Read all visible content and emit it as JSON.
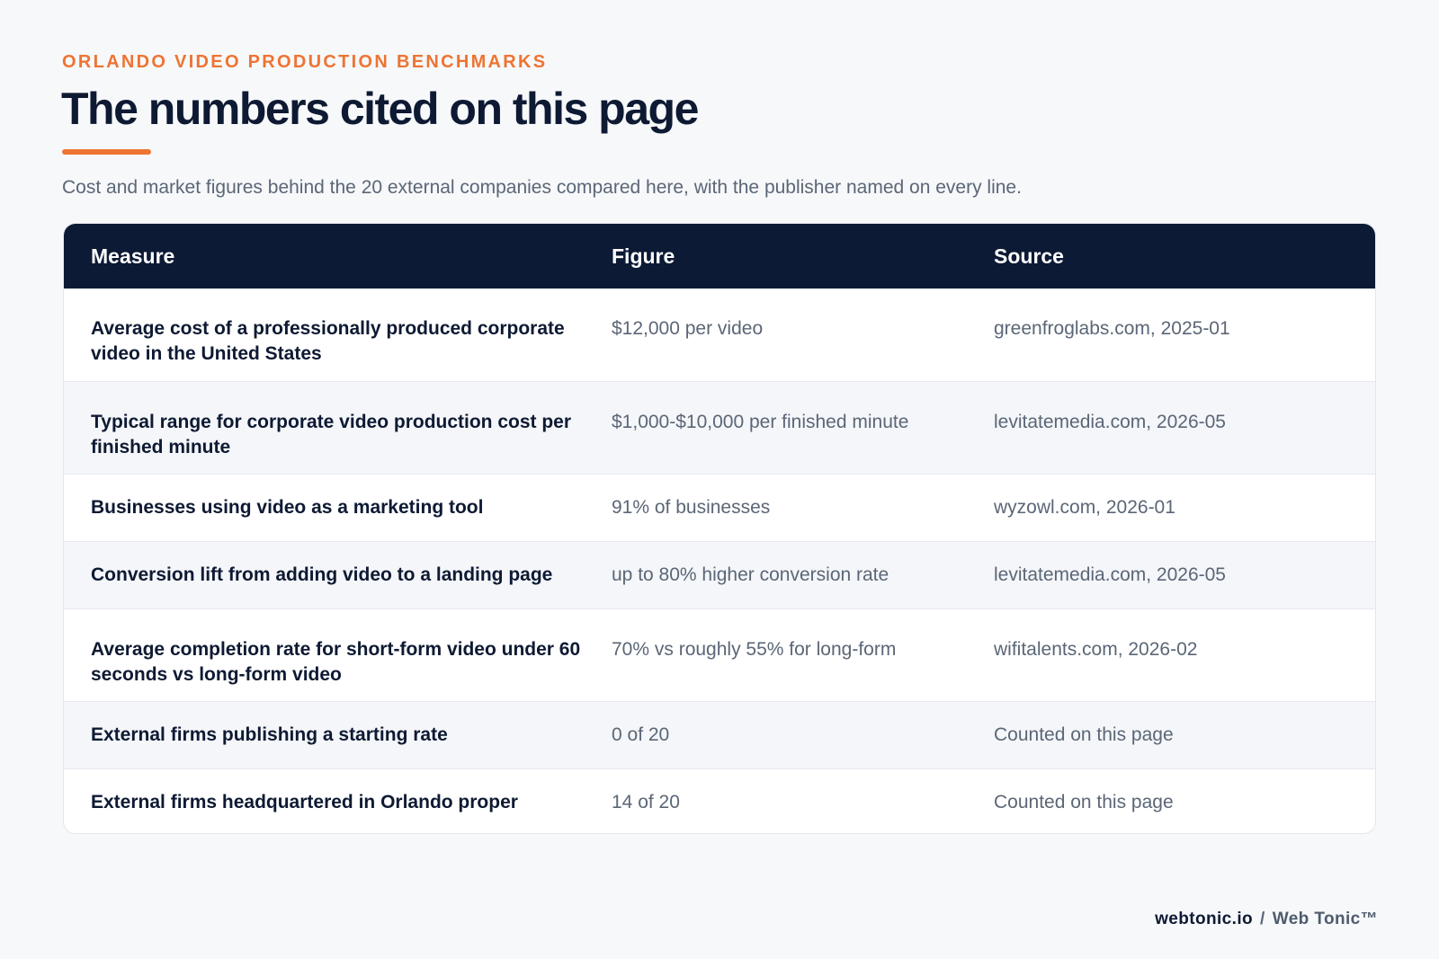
{
  "header": {
    "eyebrow": "ORLANDO VIDEO PRODUCTION BENCHMARKS",
    "title": "The numbers cited on this page",
    "subtitle": "Cost and market figures behind the 20 external companies compared here, with the publisher named on every line."
  },
  "table": {
    "columns": [
      "Measure",
      "Figure",
      "Source"
    ],
    "rows": [
      {
        "measure": "Average cost of a professionally produced corporate video in the United States",
        "figure": "$12,000 per video",
        "source": "greenfroglabs.com, 2025-01"
      },
      {
        "measure": "Typical range for corporate video production cost per finished minute",
        "figure": "$1,000-$10,000 per finished minute",
        "source": "levitatemedia.com, 2026-05"
      },
      {
        "measure": "Businesses using video as a marketing tool",
        "figure": "91% of businesses",
        "source": "wyzowl.com, 2026-01"
      },
      {
        "measure": "Conversion lift from adding video to a landing page",
        "figure": "up to 80% higher conversion rate",
        "source": "levitatemedia.com, 2026-05"
      },
      {
        "measure": "Average completion rate for short-form video under 60 seconds vs long-form video",
        "figure": "70% vs roughly 55% for long-form",
        "source": "wifitalents.com, 2026-02"
      },
      {
        "measure": "External firms publishing a starting rate",
        "figure": "0 of 20",
        "source": "Counted on this page"
      },
      {
        "measure": "External firms headquartered in Orlando proper",
        "figure": "14 of 20",
        "source": "Counted on this page"
      }
    ]
  },
  "footer": {
    "site": "webtonic.io",
    "separator": "/",
    "brand": "Web Tonic™"
  }
}
